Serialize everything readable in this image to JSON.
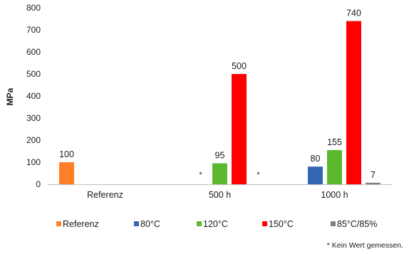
{
  "chart_data": {
    "type": "bar",
    "categories": [
      "Referenz",
      "500 h",
      "1000 h"
    ],
    "ylabel": "MPa",
    "xlabel": "",
    "ylim": [
      0,
      800
    ],
    "yticks": [
      0,
      100,
      200,
      300,
      400,
      500,
      600,
      700,
      800
    ],
    "grid": false,
    "legend_position": "bottom",
    "series": [
      {
        "name": "Referenz",
        "color": "#FF7F27",
        "values": [
          100,
          null,
          null
        ]
      },
      {
        "name": "80°C",
        "color": "#3366B3",
        "values": [
          null,
          null,
          80
        ]
      },
      {
        "name": "120°C",
        "color": "#5CB82E",
        "values": [
          null,
          95,
          155
        ]
      },
      {
        "name": "150°C",
        "color": "#FF0000",
        "values": [
          null,
          500,
          740
        ]
      },
      {
        "name": "85°C/85%",
        "color": "#808080",
        "values": [
          null,
          null,
          7
        ]
      }
    ],
    "not_measured_marks": [
      {
        "category": "500 h",
        "series": "80°C",
        "text": "*"
      },
      {
        "category": "500 h",
        "series": "85°C/85%",
        "text": "*"
      }
    ]
  },
  "footnote": "* Kein Wert gemessen."
}
